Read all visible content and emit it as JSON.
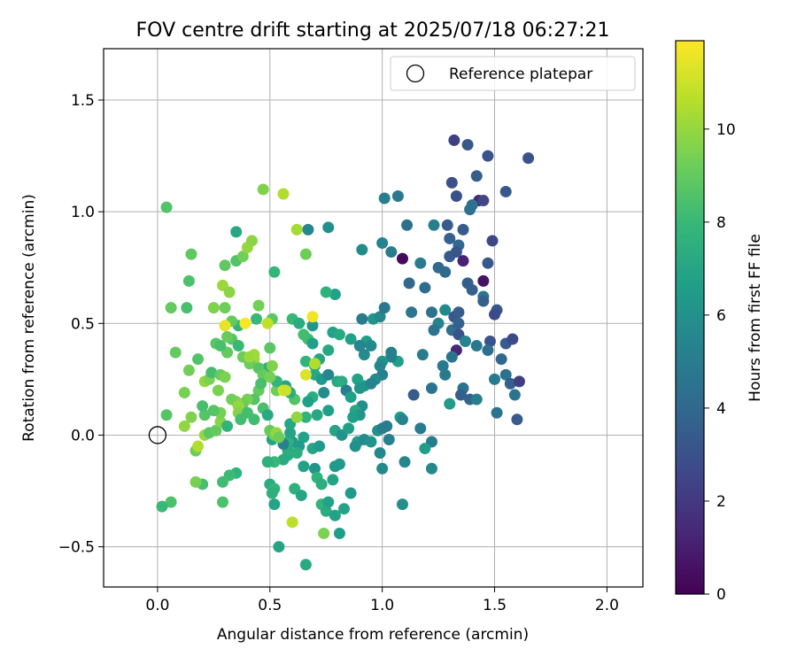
{
  "chart_data": {
    "type": "scatter",
    "title": "FOV centre drift starting at 2025/07/18 06:27:21",
    "xlabel": "Angular distance from reference (arcmin)",
    "ylabel": "Rotation from reference (arcmin)",
    "xlim": [
      -0.24,
      2.16
    ],
    "ylim": [
      -0.68,
      1.73
    ],
    "xticks": [
      0.0,
      0.5,
      1.0,
      1.5,
      2.0
    ],
    "xtick_labels": [
      "0.0",
      "0.5",
      "1.0",
      "1.5",
      "2.0"
    ],
    "yticks": [
      -0.5,
      0.0,
      0.5,
      1.0,
      1.5
    ],
    "ytick_labels": [
      "−0.5",
      "0.0",
      "0.5",
      "1.0",
      "1.5"
    ],
    "grid": true,
    "legend": {
      "position": "top-right",
      "entries": [
        "Reference platepar"
      ]
    },
    "reference_point": {
      "label": "Reference platepar",
      "x": 0.0,
      "y": 0.0,
      "marker": "open-circle"
    },
    "colorbar": {
      "label": "Hours from first FF file",
      "colormap": "viridis",
      "range": [
        0,
        11.9
      ],
      "ticks": [
        0,
        2,
        4,
        6,
        8,
        10
      ],
      "tick_labels": [
        "0",
        "2",
        "4",
        "6",
        "8",
        "10"
      ]
    },
    "colormap_stops": [
      "#440154",
      "#482878",
      "#3e4989",
      "#31688e",
      "#26828e",
      "#1f9e89",
      "#35b779",
      "#6ece58",
      "#b5de2b",
      "#fde725"
    ],
    "points": [
      [
        1.32,
        1.32,
        2.3
      ],
      [
        1.38,
        1.3,
        3.3
      ],
      [
        1.42,
        1.16,
        3.5
      ],
      [
        1.47,
        1.25,
        3.1
      ],
      [
        1.65,
        1.24,
        3.0
      ],
      [
        1.31,
        1.13,
        3.0
      ],
      [
        1.33,
        1.07,
        3.0
      ],
      [
        1.43,
        1.05,
        1.3
      ],
      [
        1.45,
        1.05,
        2.6
      ],
      [
        1.55,
        1.09,
        3.3
      ],
      [
        1.4,
        1.03,
        4.4
      ],
      [
        1.39,
        1.01,
        4.4
      ],
      [
        1.07,
        1.07,
        4.9
      ],
      [
        1.01,
        1.06,
        5.1
      ],
      [
        1.11,
        0.94,
        4.3
      ],
      [
        1.23,
        0.94,
        5.1
      ],
      [
        1.29,
        0.94,
        3.4
      ],
      [
        1.36,
        0.92,
        3.4
      ],
      [
        1.49,
        0.87,
        2.6
      ],
      [
        1.3,
        0.88,
        3.7
      ],
      [
        1.34,
        0.85,
        4.0
      ],
      [
        1.3,
        0.8,
        3.4
      ],
      [
        1.33,
        0.82,
        3.2
      ],
      [
        1.09,
        0.79,
        0.3
      ],
      [
        1.17,
        0.77,
        5.0
      ],
      [
        1.0,
        0.86,
        5.4
      ],
      [
        1.04,
        0.82,
        5.0
      ],
      [
        1.25,
        0.75,
        4.0
      ],
      [
        1.28,
        0.73,
        4.1
      ],
      [
        1.36,
        0.78,
        1.1
      ],
      [
        1.47,
        0.77,
        3.3
      ],
      [
        1.12,
        0.68,
        4.0
      ],
      [
        1.19,
        0.66,
        4.2
      ],
      [
        1.38,
        0.68,
        3.6
      ],
      [
        1.4,
        0.65,
        3.7
      ],
      [
        1.45,
        0.69,
        0.6
      ],
      [
        1.45,
        0.62,
        4.6
      ],
      [
        1.45,
        0.6,
        3.6
      ],
      [
        1.51,
        0.56,
        3.2
      ],
      [
        1.13,
        0.55,
        4.7
      ],
      [
        1.22,
        0.55,
        4.5
      ],
      [
        1.28,
        0.56,
        5.6
      ],
      [
        1.32,
        0.53,
        3.3
      ],
      [
        1.34,
        0.55,
        3.5
      ],
      [
        1.5,
        0.54,
        2.7
      ],
      [
        1.25,
        0.5,
        5.4
      ],
      [
        1.23,
        0.47,
        4.5
      ],
      [
        1.31,
        0.47,
        4.3
      ],
      [
        1.34,
        0.5,
        3.7
      ],
      [
        1.34,
        0.45,
        3.1
      ],
      [
        1.37,
        0.42,
        5.4
      ],
      [
        1.42,
        0.4,
        4.8
      ],
      [
        1.48,
        0.42,
        3.1
      ],
      [
        1.55,
        0.41,
        3.4
      ],
      [
        1.58,
        0.43,
        2.7
      ],
      [
        1.33,
        0.38,
        1.3
      ],
      [
        1.31,
        0.35,
        4.6
      ],
      [
        1.27,
        0.31,
        4.9
      ],
      [
        1.28,
        0.27,
        4.9
      ],
      [
        1.47,
        0.38,
        4.3
      ],
      [
        1.53,
        0.34,
        4.0
      ],
      [
        1.55,
        0.27,
        4.4
      ],
      [
        1.5,
        0.25,
        4.9
      ],
      [
        1.57,
        0.23,
        3.6
      ],
      [
        1.59,
        0.18,
        4.6
      ],
      [
        1.61,
        0.24,
        2.2
      ],
      [
        1.36,
        0.21,
        4.5
      ],
      [
        1.35,
        0.18,
        3.6
      ],
      [
        1.39,
        0.16,
        3.8
      ],
      [
        1.42,
        0.16,
        5.1
      ],
      [
        1.3,
        0.14,
        6.5
      ],
      [
        1.51,
        0.1,
        4.6
      ],
      [
        1.6,
        0.07,
        3.4
      ],
      [
        1.14,
        0.18,
        3.5
      ],
      [
        1.22,
        0.21,
        4.7
      ],
      [
        1.18,
        0.36,
        5.0
      ],
      [
        1.07,
        0.33,
        6.7
      ],
      [
        1.04,
        0.35,
        5.2
      ],
      [
        1.04,
        0.37,
        5.2
      ],
      [
        1.0,
        0.33,
        6.2
      ],
      [
        0.99,
        0.31,
        5.5
      ],
      [
        1.0,
        0.27,
        5.2
      ],
      [
        0.97,
        0.25,
        5.7
      ],
      [
        0.92,
        0.22,
        6.3
      ],
      [
        0.95,
        0.23,
        5.4
      ],
      [
        0.92,
        0.36,
        5.7
      ],
      [
        0.93,
        0.42,
        6.6
      ],
      [
        0.9,
        0.4,
        5.9
      ],
      [
        0.91,
        0.52,
        5.0
      ],
      [
        0.95,
        0.4,
        5.6
      ],
      [
        0.96,
        0.52,
        6.2
      ],
      [
        0.91,
        0.83,
        5.7
      ],
      [
        0.99,
        0.53,
        5.5
      ],
      [
        1.01,
        0.57,
        4.8
      ],
      [
        0.79,
        0.63,
        6.8
      ],
      [
        0.75,
        0.64,
        7.6
      ],
      [
        0.76,
        0.93,
        6.0
      ],
      [
        0.67,
        0.92,
        5.5
      ],
      [
        0.6,
        0.52,
        8.0
      ],
      [
        0.69,
        0.49,
        6.3
      ],
      [
        0.63,
        0.5,
        7.3
      ],
      [
        0.65,
        0.45,
        8.3
      ],
      [
        0.67,
        0.43,
        8.2
      ],
      [
        0.69,
        0.41,
        6.7
      ],
      [
        0.76,
        0.38,
        7.1
      ],
      [
        0.78,
        0.46,
        6.9
      ],
      [
        0.81,
        0.45,
        7.2
      ],
      [
        0.86,
        0.43,
        6.7
      ],
      [
        0.9,
        0.4,
        5.5
      ],
      [
        0.72,
        0.34,
        7.0
      ],
      [
        0.7,
        0.31,
        7.4
      ],
      [
        0.66,
        0.33,
        7.7
      ],
      [
        0.7,
        0.27,
        7.1
      ],
      [
        0.73,
        0.25,
        6.4
      ],
      [
        0.76,
        0.27,
        5.5
      ],
      [
        0.8,
        0.24,
        7.2
      ],
      [
        0.82,
        0.24,
        7.4
      ],
      [
        0.89,
        0.25,
        6.8
      ],
      [
        0.9,
        0.21,
        6.2
      ],
      [
        0.84,
        0.2,
        5.1
      ],
      [
        0.86,
        0.17,
        6.7
      ],
      [
        0.91,
        0.13,
        5.9
      ],
      [
        0.88,
        0.11,
        7.1
      ],
      [
        0.9,
        0.09,
        6.3
      ],
      [
        0.87,
        0.08,
        6.7
      ],
      [
        0.74,
        0.19,
        5.8
      ],
      [
        0.69,
        0.17,
        7.4
      ],
      [
        0.67,
        0.15,
        6.7
      ],
      [
        0.66,
        0.08,
        7.7
      ],
      [
        0.71,
        0.09,
        7.1
      ],
      [
        0.76,
        0.11,
        6.7
      ],
      [
        0.79,
        0.02,
        7.0
      ],
      [
        0.82,
        0.0,
        6.1
      ],
      [
        0.85,
        0.03,
        6.7
      ],
      [
        0.89,
        -0.03,
        6.5
      ],
      [
        0.88,
        -0.05,
        6.0
      ],
      [
        0.92,
        -0.02,
        5.7
      ],
      [
        0.95,
        -0.03,
        6.2
      ],
      [
        0.98,
        0.02,
        6.1
      ],
      [
        1.0,
        0.03,
        5.1
      ],
      [
        1.02,
        0.04,
        5.1
      ],
      [
        1.03,
        -0.02,
        5.2
      ],
      [
        0.99,
        -0.08,
        5.6
      ],
      [
        1.0,
        -0.15,
        5.6
      ],
      [
        1.08,
        0.08,
        6.6
      ],
      [
        1.09,
        0.07,
        5.4
      ],
      [
        1.17,
        0.03,
        5.0
      ],
      [
        1.22,
        -0.03,
        5.0
      ],
      [
        1.19,
        -0.06,
        6.6
      ],
      [
        1.22,
        -0.15,
        5.6
      ],
      [
        1.1,
        -0.12,
        5.5
      ],
      [
        1.09,
        -0.31,
        5.9
      ],
      [
        0.65,
        -0.01,
        6.8
      ],
      [
        0.63,
        -0.05,
        6.4
      ],
      [
        0.62,
        -0.08,
        7.4
      ],
      [
        0.6,
        -0.03,
        6.5
      ],
      [
        0.58,
        -0.07,
        7.2
      ],
      [
        0.58,
        -0.03,
        7.6
      ],
      [
        0.59,
        0.01,
        6.9
      ],
      [
        0.56,
        -0.04,
        5.2
      ],
      [
        0.59,
        0.05,
        7.1
      ],
      [
        0.62,
        0.08,
        9.9
      ],
      [
        0.61,
        0.16,
        8.6
      ],
      [
        0.59,
        0.19,
        7.4
      ],
      [
        0.57,
        0.22,
        7.0
      ],
      [
        0.53,
        0.2,
        9.2
      ],
      [
        0.56,
        0.2,
        11.2
      ],
      [
        0.53,
        0.24,
        7.8
      ],
      [
        0.49,
        0.3,
        7.3
      ],
      [
        0.51,
        0.31,
        9.6
      ],
      [
        0.5,
        0.39,
        8.8
      ],
      [
        0.51,
        0.52,
        8.8
      ],
      [
        0.52,
        0.73,
        7.9
      ],
      [
        0.44,
        0.52,
        8.0
      ],
      [
        0.45,
        0.58,
        9.3
      ],
      [
        0.43,
        0.34,
        10.1
      ],
      [
        0.41,
        0.32,
        9.2
      ],
      [
        0.43,
        0.36,
        10.2
      ],
      [
        0.45,
        0.3,
        8.7
      ],
      [
        0.47,
        0.27,
        9.0
      ],
      [
        0.5,
        0.26,
        9.4
      ],
      [
        0.45,
        0.2,
        9.0
      ],
      [
        0.46,
        0.23,
        8.4
      ],
      [
        0.43,
        0.16,
        8.6
      ],
      [
        0.4,
        0.16,
        9.4
      ],
      [
        0.38,
        0.14,
        9.2
      ],
      [
        0.35,
        0.15,
        9.7
      ],
      [
        0.33,
        0.16,
        9.3
      ],
      [
        0.36,
        0.13,
        10.0
      ],
      [
        0.36,
        0.1,
        9.7
      ],
      [
        0.37,
        0.07,
        8.3
      ],
      [
        0.4,
        0.1,
        8.3
      ],
      [
        0.43,
        0.07,
        8.2
      ],
      [
        0.47,
        0.12,
        8.4
      ],
      [
        0.49,
        0.09,
        7.2
      ],
      [
        0.5,
        0.02,
        9.1
      ],
      [
        0.51,
        -0.02,
        6.9
      ],
      [
        0.52,
        0.0,
        9.4
      ],
      [
        0.53,
        0.01,
        10.0
      ],
      [
        0.54,
        -0.01,
        9.2
      ],
      [
        0.58,
        -0.09,
        7.4
      ],
      [
        0.56,
        -0.11,
        7.3
      ],
      [
        0.52,
        -0.12,
        8.0
      ],
      [
        0.49,
        -0.12,
        7.5
      ],
      [
        0.5,
        -0.22,
        7.3
      ],
      [
        0.52,
        -0.24,
        7.9
      ],
      [
        0.51,
        -0.26,
        7.5
      ],
      [
        0.52,
        -0.31,
        6.9
      ],
      [
        0.54,
        -0.5,
        7.0
      ],
      [
        0.6,
        -0.39,
        10.7
      ],
      [
        0.61,
        -0.24,
        7.6
      ],
      [
        0.64,
        -0.27,
        7.0
      ],
      [
        0.65,
        -0.14,
        6.8
      ],
      [
        0.66,
        -0.58,
        7.2
      ],
      [
        0.7,
        -0.15,
        6.2
      ],
      [
        0.71,
        -0.19,
        7.7
      ],
      [
        0.73,
        -0.22,
        7.4
      ],
      [
        0.73,
        -0.31,
        7.8
      ],
      [
        0.74,
        -0.44,
        9.5
      ],
      [
        0.75,
        -0.34,
        7.4
      ],
      [
        0.76,
        -0.3,
        6.8
      ],
      [
        0.78,
        -0.2,
        6.9
      ],
      [
        0.79,
        -0.14,
        6.4
      ],
      [
        0.79,
        -0.36,
        6.8
      ],
      [
        0.81,
        -0.13,
        6.4
      ],
      [
        0.83,
        -0.33,
        6.9
      ],
      [
        0.86,
        -0.26,
        6.4
      ],
      [
        0.81,
        -0.44,
        6.6
      ],
      [
        0.69,
        -0.06,
        7.0
      ],
      [
        0.72,
        -0.05,
        6.4
      ],
      [
        0.35,
        -0.17,
        7.7
      ],
      [
        0.32,
        -0.18,
        8.1
      ],
      [
        0.29,
        -0.21,
        8.2
      ],
      [
        0.29,
        -0.3,
        8.5
      ],
      [
        0.2,
        -0.22,
        8.4
      ],
      [
        0.17,
        -0.21,
        9.4
      ],
      [
        0.17,
        -0.07,
        9.2
      ],
      [
        0.18,
        -0.05,
        10.5
      ],
      [
        0.21,
        0.0,
        10.0
      ],
      [
        0.23,
        0.01,
        8.8
      ],
      [
        0.26,
        0.02,
        9.0
      ],
      [
        0.28,
        0.06,
        9.7
      ],
      [
        0.31,
        0.04,
        7.7
      ],
      [
        0.28,
        0.1,
        9.4
      ],
      [
        0.25,
        0.11,
        8.7
      ],
      [
        0.21,
        0.09,
        8.7
      ],
      [
        0.2,
        0.13,
        8.4
      ],
      [
        0.15,
        0.08,
        9.6
      ],
      [
        0.12,
        0.19,
        9.4
      ],
      [
        0.14,
        0.29,
        9.3
      ],
      [
        0.18,
        0.34,
        8.6
      ],
      [
        0.21,
        0.24,
        9.9
      ],
      [
        0.23,
        0.25,
        9.5
      ],
      [
        0.24,
        0.28,
        8.3
      ],
      [
        0.27,
        0.2,
        9.5
      ],
      [
        0.28,
        0.27,
        9.1
      ],
      [
        0.3,
        0.26,
        9.5
      ],
      [
        0.31,
        0.37,
        9.0
      ],
      [
        0.33,
        0.43,
        8.7
      ],
      [
        0.31,
        0.44,
        9.1
      ],
      [
        0.26,
        0.41,
        8.8
      ],
      [
        0.28,
        0.4,
        8.4
      ],
      [
        0.36,
        0.49,
        7.8
      ],
      [
        0.36,
        0.4,
        8.0
      ],
      [
        0.38,
        0.35,
        9.2
      ],
      [
        0.33,
        0.51,
        9.1
      ],
      [
        0.3,
        0.49,
        11.5
      ],
      [
        0.39,
        0.5,
        11.8
      ],
      [
        0.29,
        0.67,
        10.1
      ],
      [
        0.32,
        0.64,
        9.8
      ],
      [
        0.3,
        0.57,
        9.2
      ],
      [
        0.25,
        0.57,
        9.6
      ],
      [
        0.35,
        0.78,
        8.6
      ],
      [
        0.38,
        0.8,
        9.3
      ],
      [
        0.4,
        0.84,
        10.0
      ],
      [
        0.42,
        0.87,
        9.8
      ],
      [
        0.35,
        0.91,
        7.1
      ],
      [
        0.3,
        0.76,
        8.9
      ],
      [
        0.14,
        0.69,
        8.5
      ],
      [
        0.15,
        0.81,
        8.9
      ],
      [
        0.13,
        0.57,
        8.4
      ],
      [
        0.06,
        0.57,
        9.0
      ],
      [
        0.04,
        1.02,
        8.6
      ],
      [
        0.47,
        1.1,
        9.6
      ],
      [
        0.56,
        1.08,
        10.5
      ],
      [
        0.62,
        0.92,
        10.3
      ],
      [
        0.66,
        0.81,
        9.2
      ],
      [
        0.69,
        0.53,
        11.6
      ],
      [
        0.7,
        0.32,
        10.5
      ],
      [
        0.66,
        0.27,
        11.3
      ],
      [
        0.57,
        0.2,
        11.0
      ],
      [
        0.49,
        0.5,
        10.8
      ],
      [
        0.41,
        0.35,
        10.1
      ],
      [
        0.08,
        0.37,
        9.0
      ],
      [
        0.04,
        0.09,
        8.7
      ],
      [
        0.06,
        -0.3,
        8.5
      ],
      [
        0.02,
        -0.32,
        8.0
      ],
      [
        0.12,
        0.04,
        9.9
      ]
    ]
  }
}
